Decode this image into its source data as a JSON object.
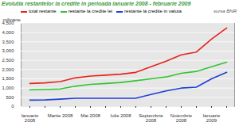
{
  "chart_data": {
    "type": "line",
    "title": "Evolutia restantelor la credite in perioada ianuarie 2008 - februarie 2009",
    "subtitle": "sursa BNR",
    "y_label": "milioane",
    "categories": [
      "Ianuarie 2008",
      null,
      "Martie 2008",
      null,
      "Mai 2008",
      null,
      "Iulie 2008",
      null,
      "Septembrie 2008",
      null,
      "Noiembrie 2008",
      null,
      "Ianuarie 2009",
      null
    ],
    "series": [
      {
        "name": "total restante",
        "color": "#e8231b",
        "values": [
          1250,
          1280,
          1350,
          1550,
          1650,
          1700,
          1750,
          1850,
          2150,
          2450,
          2800,
          2950,
          3650,
          4250
        ]
      },
      {
        "name": "restante la credite lei",
        "color": "#33c433",
        "values": [
          900,
          920,
          950,
          1100,
          1200,
          1250,
          1300,
          1400,
          1500,
          1600,
          1800,
          1900,
          2150,
          2400
        ]
      },
      {
        "name": "restante la credite in valuta",
        "color": "#1f3fd6",
        "values": [
          350,
          360,
          400,
          450,
          450,
          450,
          450,
          450,
          650,
          850,
          1000,
          1050,
          1500,
          1850
        ]
      }
    ],
    "ylim": [
      0,
      4500
    ],
    "yticks": [
      0,
      500,
      1000,
      1500,
      2000,
      2500,
      3000,
      3500,
      4000,
      4500
    ],
    "grid": true,
    "legend": "top"
  }
}
